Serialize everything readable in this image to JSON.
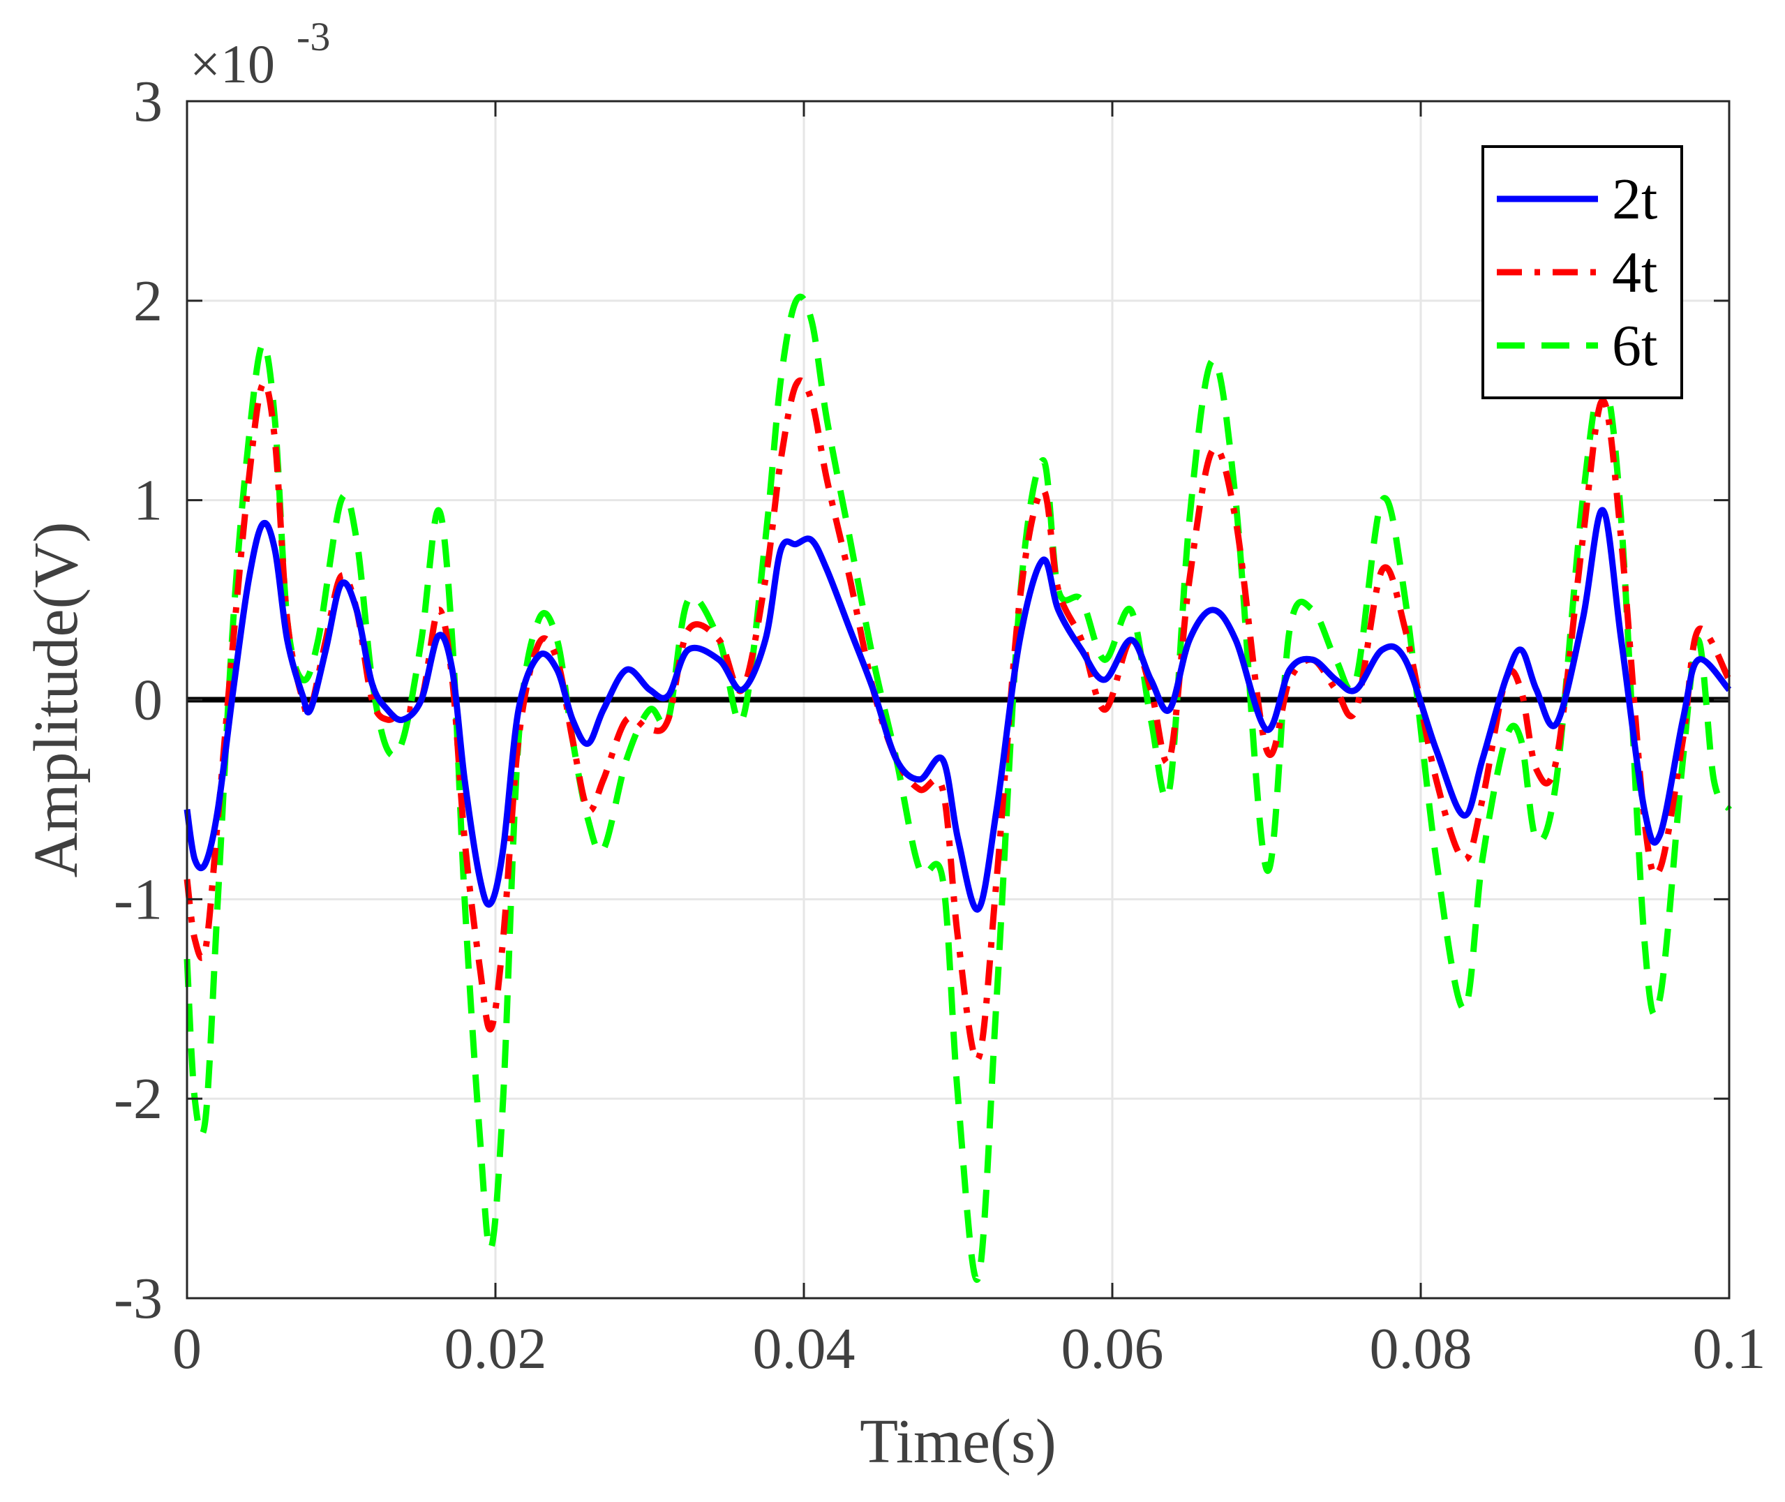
{
  "chart_data": {
    "type": "line",
    "title": "",
    "xlabel": "Time(s)",
    "ylabel": "Amplitude(V)",
    "y_exponent_label": "×10",
    "y_exponent_power": "-3",
    "xlim": [
      0,
      0.1
    ],
    "ylim": [
      -3,
      3
    ],
    "xticks": [
      0,
      0.02,
      0.04,
      0.06,
      0.08,
      0.1
    ],
    "xtick_labels": [
      "0",
      "0.02",
      "0.04",
      "0.06",
      "0.08",
      "0.1"
    ],
    "yticks": [
      -3,
      -2,
      -1,
      0,
      1,
      2,
      3
    ],
    "ytick_labels": [
      "-3",
      "-2",
      "-1",
      "0",
      "1",
      "2",
      "3"
    ],
    "grid": true,
    "legend_position": "top-right",
    "zero_line_color": "#000000",
    "series": [
      {
        "name": "2t",
        "color": "#0000ff",
        "dash": "solid",
        "points": [
          [
            0,
            -0.55
          ],
          [
            0.0005,
            -0.8
          ],
          [
            0.0012,
            -0.82
          ],
          [
            0.002,
            -0.55
          ],
          [
            0.003,
            0.05
          ],
          [
            0.004,
            0.6
          ],
          [
            0.0049,
            0.88
          ],
          [
            0.0057,
            0.75
          ],
          [
            0.0065,
            0.3
          ],
          [
            0.0075,
            0.02
          ],
          [
            0.008,
            -0.05
          ],
          [
            0.009,
            0.25
          ],
          [
            0.01,
            0.58
          ],
          [
            0.011,
            0.45
          ],
          [
            0.012,
            0.08
          ],
          [
            0.013,
            -0.05
          ],
          [
            0.014,
            -0.1
          ],
          [
            0.0152,
            0.0
          ],
          [
            0.0163,
            0.32
          ],
          [
            0.0172,
            0.15
          ],
          [
            0.018,
            -0.4
          ],
          [
            0.019,
            -0.9
          ],
          [
            0.0197,
            -1.02
          ],
          [
            0.0205,
            -0.75
          ],
          [
            0.0215,
            -0.05
          ],
          [
            0.0228,
            0.22
          ],
          [
            0.024,
            0.15
          ],
          [
            0.025,
            -0.1
          ],
          [
            0.026,
            -0.22
          ],
          [
            0.027,
            -0.05
          ],
          [
            0.0285,
            0.15
          ],
          [
            0.03,
            0.05
          ],
          [
            0.0312,
            0.02
          ],
          [
            0.0325,
            0.25
          ],
          [
            0.0345,
            0.2
          ],
          [
            0.036,
            0.05
          ],
          [
            0.0375,
            0.3
          ],
          [
            0.0385,
            0.75
          ],
          [
            0.0395,
            0.78
          ],
          [
            0.0405,
            0.8
          ],
          [
            0.0415,
            0.65
          ],
          [
            0.043,
            0.35
          ],
          [
            0.0445,
            0.05
          ],
          [
            0.046,
            -0.3
          ],
          [
            0.0475,
            -0.4
          ],
          [
            0.049,
            -0.3
          ],
          [
            0.05,
            -0.7
          ],
          [
            0.0513,
            -1.05
          ],
          [
            0.0525,
            -0.55
          ],
          [
            0.054,
            0.3
          ],
          [
            0.0555,
            0.7
          ],
          [
            0.0565,
            0.45
          ],
          [
            0.058,
            0.25
          ],
          [
            0.0595,
            0.1
          ],
          [
            0.0612,
            0.3
          ],
          [
            0.0625,
            0.1
          ],
          [
            0.0637,
            -0.05
          ],
          [
            0.065,
            0.3
          ],
          [
            0.0665,
            0.45
          ],
          [
            0.068,
            0.3
          ],
          [
            0.07,
            -0.15
          ],
          [
            0.0715,
            0.15
          ],
          [
            0.073,
            0.2
          ],
          [
            0.0745,
            0.1
          ],
          [
            0.0758,
            0.05
          ],
          [
            0.0775,
            0.25
          ],
          [
            0.079,
            0.2
          ],
          [
            0.081,
            -0.25
          ],
          [
            0.0828,
            -0.58
          ],
          [
            0.084,
            -0.3
          ],
          [
            0.0855,
            0.1
          ],
          [
            0.0865,
            0.25
          ],
          [
            0.0875,
            0.05
          ],
          [
            0.0888,
            -0.12
          ],
          [
            0.0905,
            0.4
          ],
          [
            0.0918,
            0.95
          ],
          [
            0.093,
            0.3
          ],
          [
            0.0945,
            -0.55
          ],
          [
            0.0955,
            -0.68
          ],
          [
            0.097,
            -0.1
          ],
          [
            0.098,
            0.2
          ],
          [
            0.1,
            0.05
          ]
        ]
      },
      {
        "name": "4t",
        "color": "#ff0000",
        "dash": "dashdot",
        "points": [
          [
            0,
            -0.9
          ],
          [
            0.0005,
            -1.2
          ],
          [
            0.0012,
            -1.25
          ],
          [
            0.002,
            -0.6
          ],
          [
            0.003,
            0.3
          ],
          [
            0.004,
            1.1
          ],
          [
            0.0049,
            1.58
          ],
          [
            0.0057,
            1.3
          ],
          [
            0.0065,
            0.4
          ],
          [
            0.0075,
            0.0
          ],
          [
            0.008,
            -0.05
          ],
          [
            0.009,
            0.3
          ],
          [
            0.01,
            0.62
          ],
          [
            0.011,
            0.45
          ],
          [
            0.012,
            0.0
          ],
          [
            0.013,
            -0.1
          ],
          [
            0.014,
            -0.05
          ],
          [
            0.0152,
            0.0
          ],
          [
            0.0163,
            0.45
          ],
          [
            0.0172,
            0.1
          ],
          [
            0.018,
            -0.7
          ],
          [
            0.019,
            -1.35
          ],
          [
            0.0197,
            -1.65
          ],
          [
            0.0205,
            -1.2
          ],
          [
            0.0215,
            -0.2
          ],
          [
            0.0228,
            0.28
          ],
          [
            0.024,
            0.2
          ],
          [
            0.025,
            -0.2
          ],
          [
            0.026,
            -0.55
          ],
          [
            0.027,
            -0.4
          ],
          [
            0.0285,
            -0.1
          ],
          [
            0.03,
            -0.15
          ],
          [
            0.0312,
            -0.1
          ],
          [
            0.0325,
            0.35
          ],
          [
            0.0345,
            0.3
          ],
          [
            0.036,
            0.05
          ],
          [
            0.0375,
            0.6
          ],
          [
            0.0385,
            1.2
          ],
          [
            0.0395,
            1.58
          ],
          [
            0.0405,
            1.5
          ],
          [
            0.0415,
            1.1
          ],
          [
            0.043,
            0.6
          ],
          [
            0.0445,
            0.05
          ],
          [
            0.046,
            -0.3
          ],
          [
            0.0475,
            -0.45
          ],
          [
            0.049,
            -0.45
          ],
          [
            0.05,
            -1.2
          ],
          [
            0.0513,
            -1.8
          ],
          [
            0.0525,
            -0.9
          ],
          [
            0.054,
            0.5
          ],
          [
            0.0555,
            1.05
          ],
          [
            0.0565,
            0.55
          ],
          [
            0.058,
            0.3
          ],
          [
            0.0595,
            -0.05
          ],
          [
            0.0612,
            0.3
          ],
          [
            0.0625,
            0.05
          ],
          [
            0.0637,
            -0.3
          ],
          [
            0.065,
            0.6
          ],
          [
            0.0665,
            1.25
          ],
          [
            0.068,
            0.9
          ],
          [
            0.07,
            -0.25
          ],
          [
            0.0715,
            0.1
          ],
          [
            0.073,
            0.2
          ],
          [
            0.0745,
            0.05
          ],
          [
            0.0758,
            -0.05
          ],
          [
            0.0775,
            0.65
          ],
          [
            0.079,
            0.35
          ],
          [
            0.081,
            -0.4
          ],
          [
            0.0828,
            -0.8
          ],
          [
            0.084,
            -0.5
          ],
          [
            0.0855,
            0.1
          ],
          [
            0.0865,
            0.05
          ],
          [
            0.0875,
            -0.35
          ],
          [
            0.0888,
            -0.3
          ],
          [
            0.0905,
            0.8
          ],
          [
            0.0918,
            1.5
          ],
          [
            0.093,
            0.8
          ],
          [
            0.0945,
            -0.6
          ],
          [
            0.0955,
            -0.85
          ],
          [
            0.097,
            -0.2
          ],
          [
            0.098,
            0.35
          ],
          [
            0.1,
            0.1
          ]
        ]
      },
      {
        "name": "6t",
        "color": "#00ff00",
        "dash": "dashed",
        "points": [
          [
            0,
            -1.3
          ],
          [
            0.0005,
            -2.0
          ],
          [
            0.0012,
            -2.1
          ],
          [
            0.002,
            -1.0
          ],
          [
            0.003,
            0.4
          ],
          [
            0.004,
            1.3
          ],
          [
            0.0049,
            1.78
          ],
          [
            0.0057,
            1.4
          ],
          [
            0.0065,
            0.4
          ],
          [
            0.0075,
            0.1
          ],
          [
            0.0085,
            0.3
          ],
          [
            0.01,
            1.0
          ],
          [
            0.011,
            0.8
          ],
          [
            0.012,
            0.1
          ],
          [
            0.013,
            -0.25
          ],
          [
            0.014,
            -0.2
          ],
          [
            0.0152,
            0.3
          ],
          [
            0.0163,
            0.95
          ],
          [
            0.0172,
            0.3
          ],
          [
            0.018,
            -1.0
          ],
          [
            0.019,
            -2.2
          ],
          [
            0.0197,
            -2.75
          ],
          [
            0.0205,
            -2.0
          ],
          [
            0.0215,
            -0.2
          ],
          [
            0.0228,
            0.4
          ],
          [
            0.024,
            0.3
          ],
          [
            0.025,
            -0.2
          ],
          [
            0.026,
            -0.6
          ],
          [
            0.027,
            -0.75
          ],
          [
            0.0285,
            -0.3
          ],
          [
            0.03,
            -0.05
          ],
          [
            0.0312,
            -0.1
          ],
          [
            0.0325,
            0.5
          ],
          [
            0.0345,
            0.3
          ],
          [
            0.036,
            -0.1
          ],
          [
            0.0375,
            0.8
          ],
          [
            0.0385,
            1.6
          ],
          [
            0.0395,
            2.0
          ],
          [
            0.0405,
            1.9
          ],
          [
            0.0415,
            1.4
          ],
          [
            0.043,
            0.8
          ],
          [
            0.0445,
            0.2
          ],
          [
            0.046,
            -0.3
          ],
          [
            0.0475,
            -0.85
          ],
          [
            0.049,
            -0.9
          ],
          [
            0.05,
            -2.0
          ],
          [
            0.0513,
            -2.9
          ],
          [
            0.0525,
            -1.5
          ],
          [
            0.054,
            0.5
          ],
          [
            0.0555,
            1.2
          ],
          [
            0.0565,
            0.55
          ],
          [
            0.058,
            0.5
          ],
          [
            0.0595,
            0.2
          ],
          [
            0.0612,
            0.45
          ],
          [
            0.0625,
            -0.1
          ],
          [
            0.0637,
            -0.45
          ],
          [
            0.065,
            0.9
          ],
          [
            0.0665,
            1.7
          ],
          [
            0.068,
            1.0
          ],
          [
            0.07,
            -0.85
          ],
          [
            0.0715,
            0.35
          ],
          [
            0.073,
            0.45
          ],
          [
            0.0745,
            0.2
          ],
          [
            0.0758,
            0.1
          ],
          [
            0.0775,
            1.0
          ],
          [
            0.079,
            0.5
          ],
          [
            0.081,
            -0.8
          ],
          [
            0.0828,
            -1.55
          ],
          [
            0.084,
            -0.8
          ],
          [
            0.0855,
            -0.2
          ],
          [
            0.0865,
            -0.2
          ],
          [
            0.0875,
            -0.7
          ],
          [
            0.0888,
            -0.4
          ],
          [
            0.0905,
            1.0
          ],
          [
            0.0918,
            1.6
          ],
          [
            0.093,
            0.9
          ],
          [
            0.0945,
            -1.2
          ],
          [
            0.0955,
            -1.5
          ],
          [
            0.097,
            -0.3
          ],
          [
            0.098,
            0.3
          ],
          [
            0.099,
            -0.4
          ],
          [
            0.1,
            -0.55
          ]
        ]
      }
    ]
  }
}
